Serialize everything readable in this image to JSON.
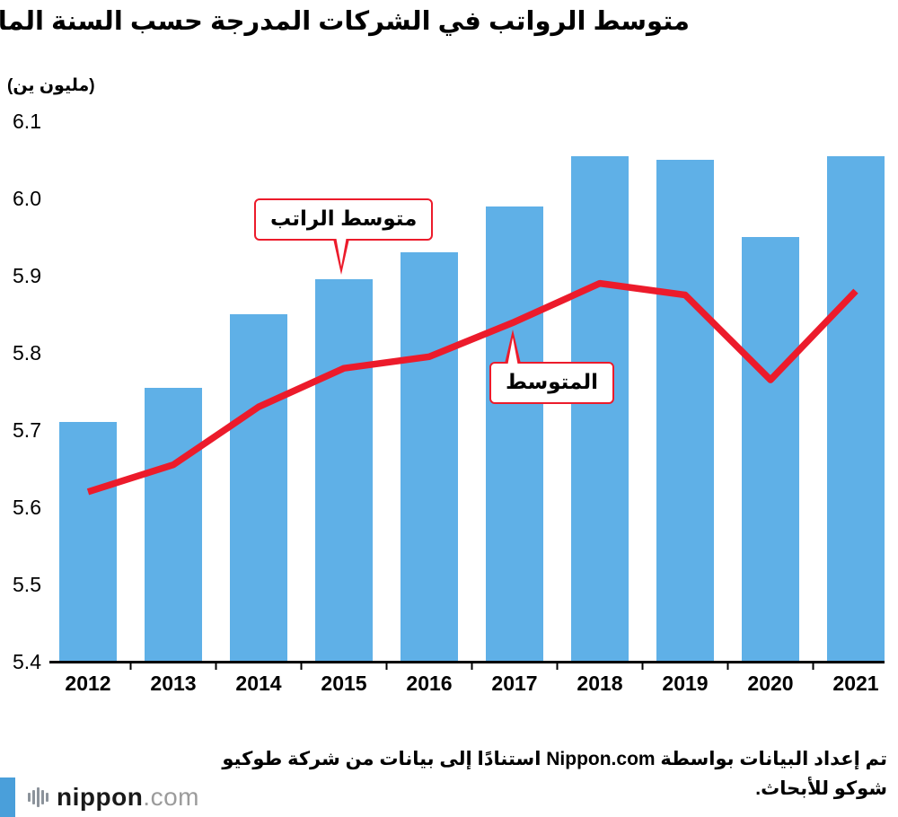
{
  "title": "متوسط الرواتب في الشركات المدرجة حسب السنة المالية",
  "y_axis_unit": "(مليون ين)",
  "chart_data": {
    "type": "bar",
    "categories": [
      "2012",
      "2013",
      "2014",
      "2015",
      "2016",
      "2017",
      "2018",
      "2019",
      "2020",
      "2021"
    ],
    "series": [
      {
        "name": "متوسط الراتب",
        "type": "bar",
        "color": "#5FB0E7",
        "values": [
          5.71,
          5.755,
          5.85,
          5.895,
          5.93,
          5.99,
          6.055,
          6.05,
          5.95,
          6.055
        ]
      },
      {
        "name": "المتوسط",
        "type": "line",
        "color": "#EC1B2B",
        "values": [
          5.62,
          5.655,
          5.73,
          5.78,
          5.795,
          5.84,
          5.89,
          5.875,
          5.765,
          5.88
        ]
      }
    ],
    "ylim": [
      5.4,
      6.1
    ],
    "y_tick_labels": [
      "6.1",
      "6.0",
      "5.9",
      "5.8",
      "5.7",
      "5.6",
      "5.5",
      "5.4"
    ],
    "grid": false,
    "legend_position": "none",
    "annotations": [
      {
        "label": "متوسط الراتب",
        "points_to": "top of 2015 bar"
      },
      {
        "label": "المتوسط",
        "points_to": "median line near 2017"
      }
    ]
  },
  "source_note": "تم إعداد البيانات بواسطة Nippon.com استنادًا إلى بيانات من شركة طوكيو شوكو للأبحاث.",
  "logo": {
    "name": "nippon",
    "tld": ".com"
  },
  "colors": {
    "bar": "#5FB0E7",
    "line": "#EC1B2B",
    "axis": "#000000",
    "accent_stripe": "#4A9FDA",
    "logo_gray": "#9B9B9B"
  }
}
